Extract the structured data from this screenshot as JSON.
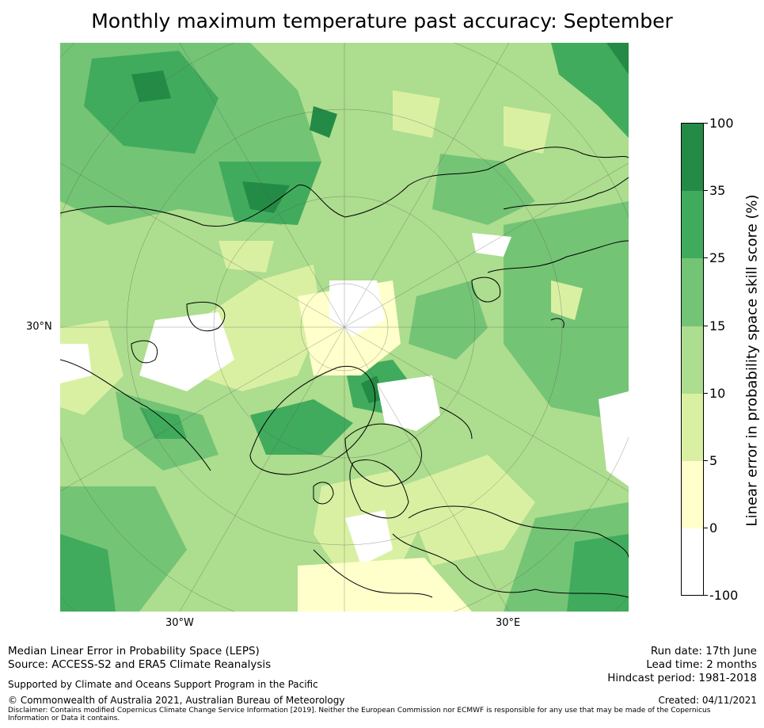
{
  "title": "Monthly maximum temperature past accuracy: September",
  "map": {
    "projection": "north-polar-stereographic",
    "lat_labels": [
      "30°N"
    ],
    "lon_labels": [
      "30°W",
      "30°E"
    ],
    "grid": true
  },
  "colorbar": {
    "title": "Linear error in probability space skill score (%)",
    "ticks": [
      "100",
      "35",
      "25",
      "15",
      "10",
      "5",
      "0",
      "-100"
    ],
    "bands": [
      {
        "range": "35 to 100",
        "color": "#238b45"
      },
      {
        "range": "25 to 35",
        "color": "#41ab5d"
      },
      {
        "range": "15 to 25",
        "color": "#74c476"
      },
      {
        "range": "10 to 15",
        "color": "#addd8e"
      },
      {
        "range": "5 to 10",
        "color": "#d9f0a3"
      },
      {
        "range": "0 to 5",
        "color": "#ffffcc"
      },
      {
        "range": "-100 to 0",
        "color": "#ffffff"
      }
    ]
  },
  "footer": {
    "left_line1": "Median Linear Error in Probability Space (LEPS)",
    "left_line2": "Source: ACCESS-S2 and ERA5 Climate Reanalysis",
    "support": "Supported by Climate and Oceans Support Program in the Pacific",
    "copyright": "© Commonwealth of Australia 2021, Australian Bureau of Meteorology",
    "disclaimer": "Disclaimer: Contains modified Copernicus Climate Change Service Information [2019]. Neither the European Commission nor ECMWF is responsible for any use that may be made of the Copernicus Information or Data it contains.",
    "run_date": "Run date: 17th June",
    "lead_time": "Lead time: 2 months",
    "hindcast": "Hindcast period: 1981-2018",
    "created": "Created: 04/11/2021"
  }
}
